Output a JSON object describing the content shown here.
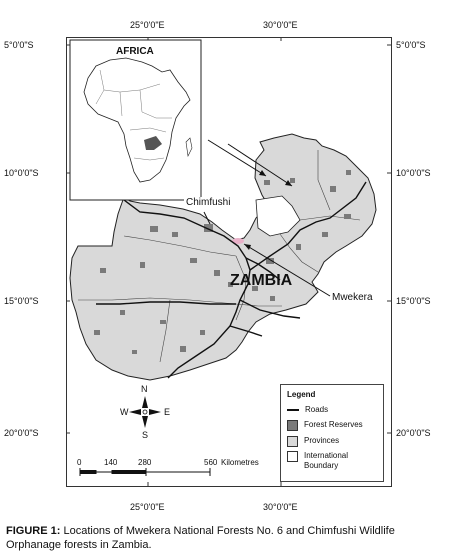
{
  "map": {
    "inset_title": "AFRICA",
    "country_label": "ZAMBIA",
    "site_labels": {
      "chimfushi": "Chimfushi",
      "mwekera": "Mwekera"
    },
    "coords": {
      "top_lon": [
        "25°0'0\"E",
        "30°0'0\"E"
      ],
      "bottom_lon": [
        "25°0'0\"E",
        "30°0'0\"E"
      ],
      "left_lat": [
        "5°0'0\"S",
        "10°0'0\"S",
        "15°0'0\"S",
        "20°0'0\"S"
      ],
      "right_lat": [
        "5°0'0\"S",
        "10°0'0\"S",
        "15°0'0\"S",
        "20°0'0\"S"
      ]
    },
    "north_arrow": {
      "n": "N",
      "s": "S",
      "e": "E",
      "w": "W"
    },
    "scale_bar": {
      "ticks": [
        "0",
        "140",
        "280",
        "560"
      ],
      "unit": "Kilometres"
    },
    "legend": {
      "title": "Legend",
      "items": [
        {
          "label": "Roads",
          "symbol": "line"
        },
        {
          "label": "Forest Reserves",
          "symbol": "dark-fill"
        },
        {
          "label": "Provinces",
          "symbol": "light-fill"
        },
        {
          "label": "International Boundary",
          "symbol": "white-fill"
        }
      ]
    },
    "colors": {
      "provinces": "#d9d9d9",
      "forest": "#7a7a7a",
      "roads": "#111111",
      "highlight": "#e8b0c8",
      "zambia_in_africa": "#555555"
    }
  },
  "caption": {
    "label": "FIGURE 1:",
    "text": " Locations of Mwekera National Forests No. 6 and Chimfushi Wildlife Orphanage forests in Zambia."
  }
}
